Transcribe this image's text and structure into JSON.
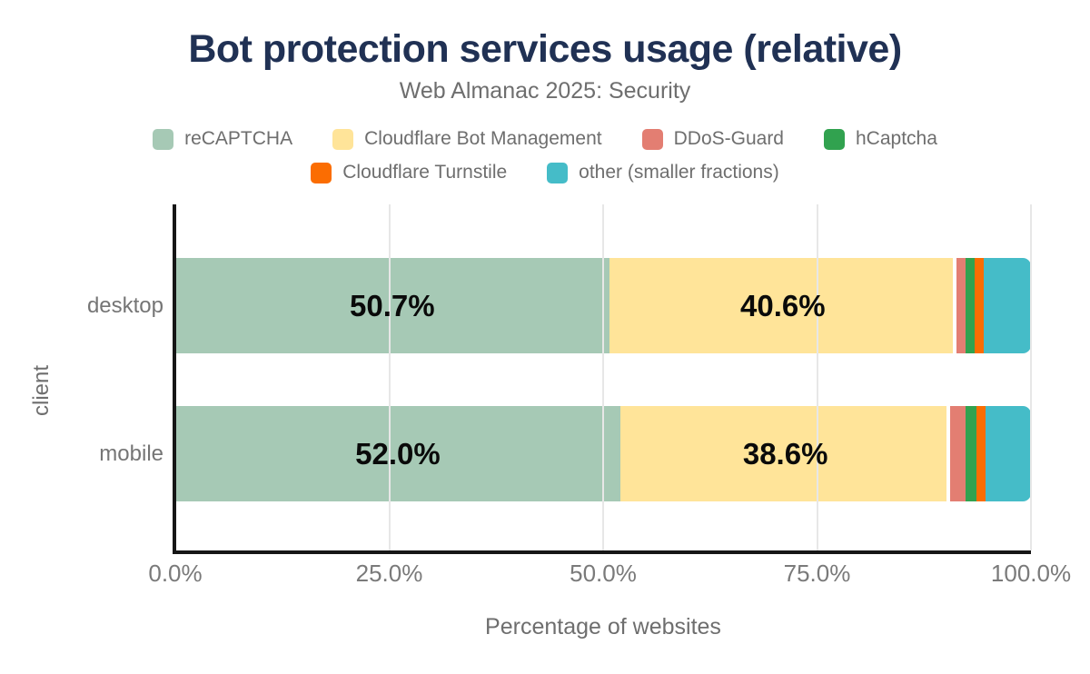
{
  "title": "Bot protection services usage (relative)",
  "subtitle": "Web Almanac 2025: Security",
  "chart_data": {
    "type": "bar",
    "variant": "horizontal-stacked",
    "title": "Bot protection services usage (relative)",
    "subtitle": "Web Almanac 2025: Security",
    "categories": [
      "desktop",
      "mobile"
    ],
    "series": [
      {
        "name": "reCAPTCHA",
        "color": "#a6c9b5",
        "values": [
          50.7,
          52.0
        ]
      },
      {
        "name": "Cloudflare Bot Management",
        "color": "#ffe499",
        "values": [
          40.6,
          38.6
        ]
      },
      {
        "name": "DDoS-Guard",
        "color": "#e37e72",
        "values": [
          1.1,
          1.8
        ]
      },
      {
        "name": "hCaptcha",
        "color": "#31a24f",
        "values": [
          1.0,
          1.2
        ]
      },
      {
        "name": "Cloudflare Turnstile",
        "color": "#fb6d02",
        "values": [
          1.1,
          1.1
        ]
      },
      {
        "name": "other (smaller fractions)",
        "color": "#45bcc8",
        "values": [
          5.5,
          5.3
        ]
      }
    ],
    "bar_labels": [
      [
        "50.7%",
        "40.6%"
      ],
      [
        "52.0%",
        "38.6%"
      ]
    ],
    "xlabel": "Percentage of websites",
    "ylabel": "client",
    "x_ticks": [
      "0.0%",
      "25.0%",
      "50.0%",
      "75.0%",
      "100.0%"
    ],
    "x_tick_values": [
      0,
      25,
      50,
      75,
      100
    ],
    "xlim": [
      0,
      100
    ],
    "grid": true,
    "legend_position": "top",
    "legend_rows": [
      [
        0,
        1,
        2,
        3
      ],
      [
        4,
        5
      ]
    ]
  },
  "colors": {
    "title": "#203154",
    "muted_text": "#6e6e6e",
    "tick_text": "#7a7a7a",
    "value_label": "#0a0a0a",
    "axis": "#161616",
    "gridline": "#e7e7e7",
    "background": "#ffffff"
  }
}
